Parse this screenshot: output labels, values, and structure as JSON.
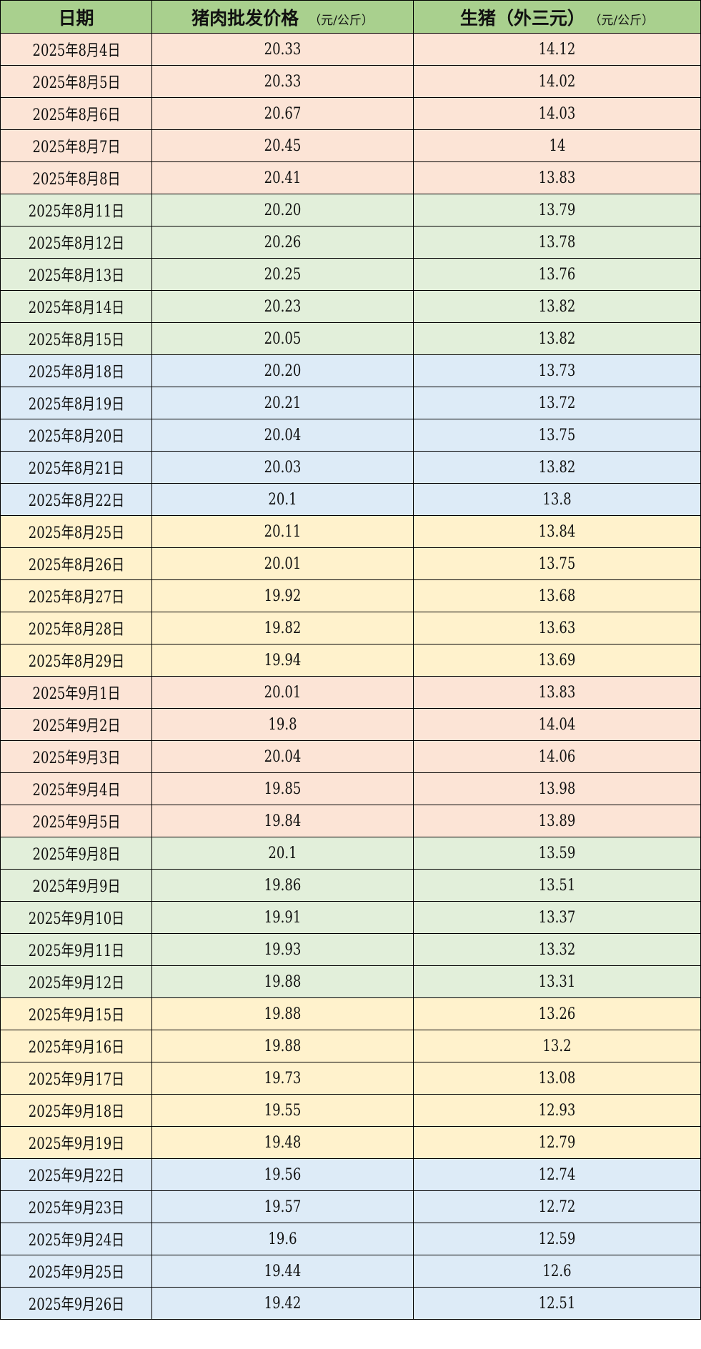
{
  "colors": {
    "header": "#a9d08e",
    "week_colors": [
      "#fce4d6",
      "#e2efda",
      "#ddebf7",
      "#fff2cc"
    ]
  },
  "header": {
    "date": "日期",
    "wholesale": "猪肉批发价格",
    "wholesale_unit": "（元/公斤）",
    "live_hog": "生猪（外三元）",
    "live_hog_unit": "（元/公斤）"
  },
  "rows": [
    {
      "date": "2025年8月4日",
      "wholesale": "20.33",
      "hog": "14.12",
      "group": 0
    },
    {
      "date": "2025年8月5日",
      "wholesale": "20.33",
      "hog": "14.02",
      "group": 0
    },
    {
      "date": "2025年8月6日",
      "wholesale": "20.67",
      "hog": "14.03",
      "group": 0
    },
    {
      "date": "2025年8月7日",
      "wholesale": "20.45",
      "hog": "14",
      "group": 0
    },
    {
      "date": "2025年8月8日",
      "wholesale": "20.41",
      "hog": "13.83",
      "group": 0
    },
    {
      "date": "2025年8月11日",
      "wholesale": "20.20",
      "hog": "13.79",
      "group": 1
    },
    {
      "date": "2025年8月12日",
      "wholesale": "20.26",
      "hog": "13.78",
      "group": 1
    },
    {
      "date": "2025年8月13日",
      "wholesale": "20.25",
      "hog": "13.76",
      "group": 1
    },
    {
      "date": "2025年8月14日",
      "wholesale": "20.23",
      "hog": "13.82",
      "group": 1
    },
    {
      "date": "2025年8月15日",
      "wholesale": "20.05",
      "hog": "13.82",
      "group": 1
    },
    {
      "date": "2025年8月18日",
      "wholesale": "20.20",
      "hog": "13.73",
      "group": 2
    },
    {
      "date": "2025年8月19日",
      "wholesale": "20.21",
      "hog": "13.72",
      "group": 2
    },
    {
      "date": "2025年8月20日",
      "wholesale": "20.04",
      "hog": "13.75",
      "group": 2
    },
    {
      "date": "2025年8月21日",
      "wholesale": "20.03",
      "hog": "13.82",
      "group": 2
    },
    {
      "date": "2025年8月22日",
      "wholesale": "20.1",
      "hog": "13.8",
      "group": 2
    },
    {
      "date": "2025年8月25日",
      "wholesale": "20.11",
      "hog": "13.84",
      "group": 3
    },
    {
      "date": "2025年8月26日",
      "wholesale": "20.01",
      "hog": "13.75",
      "group": 3
    },
    {
      "date": "2025年8月27日",
      "wholesale": "19.92",
      "hog": "13.68",
      "group": 3
    },
    {
      "date": "2025年8月28日",
      "wholesale": "19.82",
      "hog": "13.63",
      "group": 3
    },
    {
      "date": "2025年8月29日",
      "wholesale": "19.94",
      "hog": "13.69",
      "group": 3
    },
    {
      "date": "2025年9月1日",
      "wholesale": "20.01",
      "hog": "13.83",
      "group": 0
    },
    {
      "date": "2025年9月2日",
      "wholesale": "19.8",
      "hog": "14.04",
      "group": 0
    },
    {
      "date": "2025年9月3日",
      "wholesale": "20.04",
      "hog": "14.06",
      "group": 0
    },
    {
      "date": "2025年9月4日",
      "wholesale": "19.85",
      "hog": "13.98",
      "group": 0
    },
    {
      "date": "2025年9月5日",
      "wholesale": "19.84",
      "hog": "13.89",
      "group": 0
    },
    {
      "date": "2025年9月8日",
      "wholesale": "20.1",
      "hog": "13.59",
      "group": 1
    },
    {
      "date": "2025年9月9日",
      "wholesale": "19.86",
      "hog": "13.51",
      "group": 1
    },
    {
      "date": "2025年9月10日",
      "wholesale": "19.91",
      "hog": "13.37",
      "group": 1
    },
    {
      "date": "2025年9月11日",
      "wholesale": "19.93",
      "hog": "13.32",
      "group": 1
    },
    {
      "date": "2025年9月12日",
      "wholesale": "19.88",
      "hog": "13.31",
      "group": 1
    },
    {
      "date": "2025年9月15日",
      "wholesale": "19.88",
      "hog": "13.26",
      "group": 3
    },
    {
      "date": "2025年9月16日",
      "wholesale": "19.88",
      "hog": "13.2",
      "group": 3
    },
    {
      "date": "2025年9月17日",
      "wholesale": "19.73",
      "hog": "13.08",
      "group": 3
    },
    {
      "date": "2025年9月18日",
      "wholesale": "19.55",
      "hog": "12.93",
      "group": 3
    },
    {
      "date": "2025年9月19日",
      "wholesale": "19.48",
      "hog": "12.79",
      "group": 3
    },
    {
      "date": "2025年9月22日",
      "wholesale": "19.56",
      "hog": "12.74",
      "group": 2
    },
    {
      "date": "2025年9月23日",
      "wholesale": "19.57",
      "hog": "12.72",
      "group": 2
    },
    {
      "date": "2025年9月24日",
      "wholesale": "19.6",
      "hog": "12.59",
      "group": 2
    },
    {
      "date": "2025年9月25日",
      "wholesale": "19.44",
      "hog": "12.6",
      "group": 2
    },
    {
      "date": "2025年9月26日",
      "wholesale": "19.42",
      "hog": "12.51",
      "group": 2
    }
  ]
}
